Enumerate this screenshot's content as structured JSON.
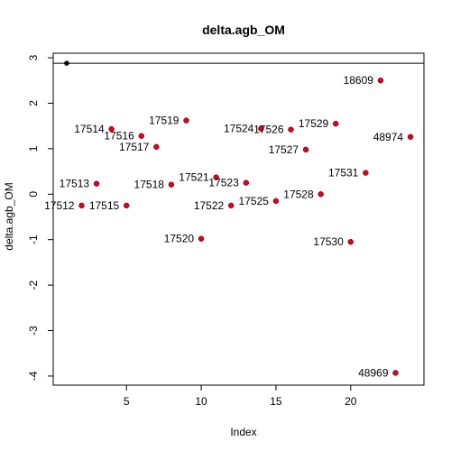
{
  "chart_data": {
    "type": "scatter",
    "title": "delta.agb_OM",
    "xlabel": "Index",
    "ylabel": "delta.agb_OM",
    "xlim": [
      0.1,
      24.9
    ],
    "ylim": [
      -4.2,
      3.1
    ],
    "x_ticks": [
      5,
      10,
      15,
      20
    ],
    "y_ticks": [
      -4,
      -3,
      -2,
      -1,
      0,
      1,
      2,
      3
    ],
    "grid": false,
    "legend": "none",
    "colors": {
      "highlight": "#000000",
      "points": "#e0001b",
      "outline": "#000000"
    },
    "reference_line": {
      "y": 2.88
    },
    "points": [
      {
        "x": 1,
        "y": 2.88,
        "label": "",
        "highlight": true
      },
      {
        "x": 2,
        "y": -0.25,
        "label": "17512",
        "pos": "left"
      },
      {
        "x": 3,
        "y": 0.23,
        "label": "17513",
        "pos": "left"
      },
      {
        "x": 4,
        "y": 1.43,
        "label": "17514",
        "pos": "left"
      },
      {
        "x": 5,
        "y": -0.25,
        "label": "17515",
        "pos": "left"
      },
      {
        "x": 6,
        "y": 1.28,
        "label": "17516",
        "pos": "left"
      },
      {
        "x": 7,
        "y": 1.04,
        "label": "17517",
        "pos": "left"
      },
      {
        "x": 8,
        "y": 0.21,
        "label": "17518",
        "pos": "left"
      },
      {
        "x": 9,
        "y": 1.62,
        "label": "17519",
        "pos": "left"
      },
      {
        "x": 10,
        "y": -0.98,
        "label": "17520",
        "pos": "left"
      },
      {
        "x": 11,
        "y": 0.37,
        "label": "17521",
        "pos": "left"
      },
      {
        "x": 12,
        "y": -0.25,
        "label": "17522",
        "pos": "left"
      },
      {
        "x": 13,
        "y": 0.25,
        "label": "17523",
        "pos": "left"
      },
      {
        "x": 14,
        "y": 1.44,
        "label": "17524",
        "pos": "left"
      },
      {
        "x": 15,
        "y": -0.15,
        "label": "17525",
        "pos": "left"
      },
      {
        "x": 16,
        "y": 1.42,
        "label": "17526",
        "pos": "left"
      },
      {
        "x": 17,
        "y": 0.98,
        "label": "17527",
        "pos": "left"
      },
      {
        "x": 18,
        "y": 0.0,
        "label": "17528",
        "pos": "left"
      },
      {
        "x": 19,
        "y": 1.55,
        "label": "17529",
        "pos": "left"
      },
      {
        "x": 20,
        "y": -1.05,
        "label": "17530",
        "pos": "left"
      },
      {
        "x": 21,
        "y": 0.47,
        "label": "17531",
        "pos": "left"
      },
      {
        "x": 22,
        "y": 2.5,
        "label": "18609",
        "pos": "left"
      },
      {
        "x": 23,
        "y": -3.93,
        "label": "48969",
        "pos": "left"
      },
      {
        "x": 24,
        "y": 1.26,
        "label": "48974",
        "pos": "left"
      }
    ]
  }
}
